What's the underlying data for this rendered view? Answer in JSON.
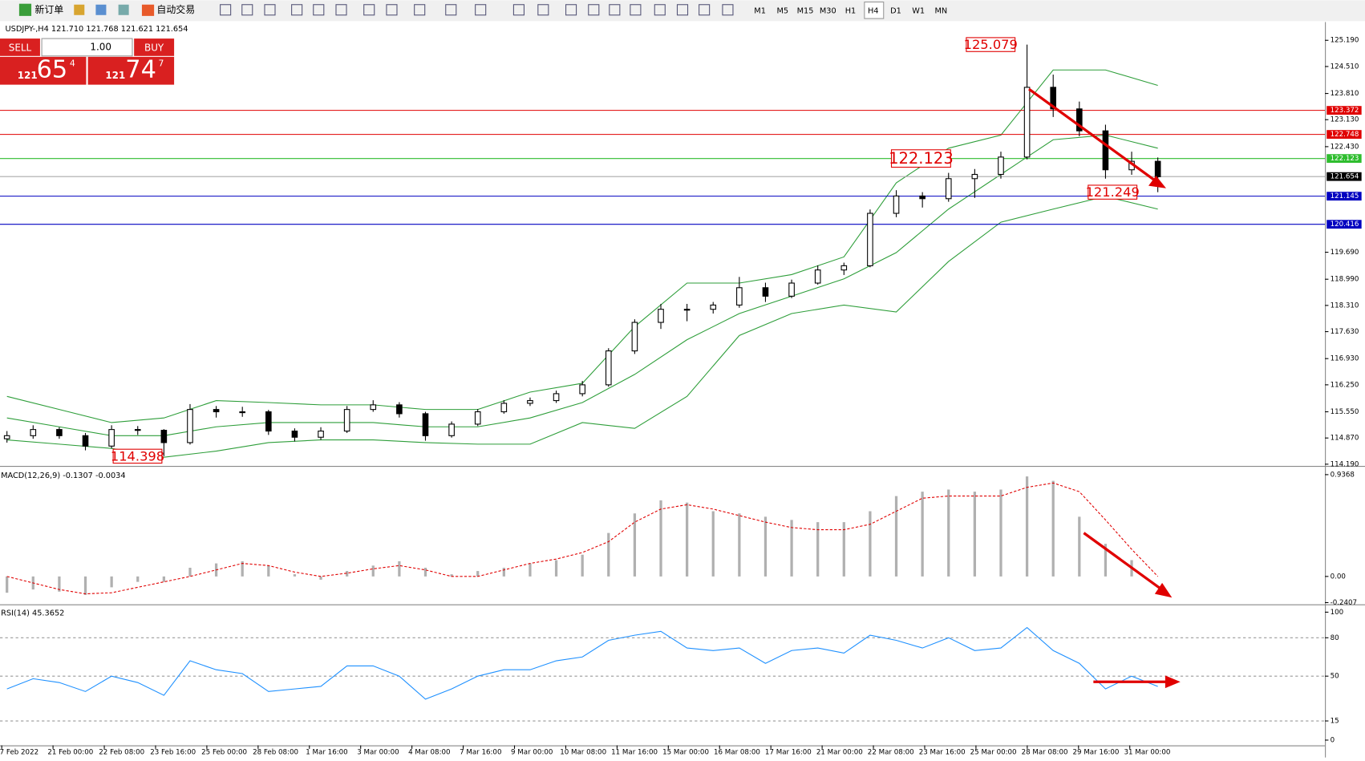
{
  "toolbar": {
    "new_order": "新订单",
    "auto_trade": "自动交易",
    "timeframes": [
      "M1",
      "M5",
      "M15",
      "M30",
      "H1",
      "H4",
      "D1",
      "W1",
      "MN"
    ],
    "active": "H4"
  },
  "trade_panel": {
    "sell": "SELL",
    "buy": "BUY",
    "lots": "1.00",
    "bid_big": "121",
    "bid_pips": "65",
    "bid_frac": "4",
    "ask_big": "121",
    "ask_pips": "74",
    "ask_frac": "7"
  },
  "time_axis": [
    "7 Feb 2022",
    "21 Feb 00:00",
    "22 Feb 08:00",
    "23 Feb 16:00",
    "25 Feb 00:00",
    "28 Feb 08:00",
    "1 Mar 16:00",
    "3 Mar 00:00",
    "4 Mar 08:00",
    "7 Mar 16:00",
    "9 Mar 00:00",
    "10 Mar 08:00",
    "11 Mar 16:00",
    "15 Mar 00:00",
    "16 Mar 08:00",
    "17 Mar 16:00",
    "21 Mar 00:00",
    "22 Mar 08:00",
    "23 Mar 16:00",
    "25 Mar 00:00",
    "28 Mar 08:00",
    "29 Mar 16:00",
    "31 Mar 00:00"
  ],
  "chart_data": [
    {
      "type": "candlestick",
      "title": "USDJPY-,H4 121.710 121.768 121.621 121.654",
      "ylim": [
        114.19,
        125.19
      ],
      "yticks": [
        {
          "value": 125.19,
          "label": "125.190"
        },
        {
          "value": 124.51,
          "label": "124.510"
        },
        {
          "value": 123.81,
          "label": "123.810"
        },
        {
          "value": 123.13,
          "label": "123.130"
        },
        {
          "value": 122.43,
          "label": "122.430"
        },
        {
          "value": 119.69,
          "label": "119.690"
        },
        {
          "value": 118.99,
          "label": "118.990"
        },
        {
          "value": 118.31,
          "label": "118.310"
        },
        {
          "value": 117.63,
          "label": "117.630"
        },
        {
          "value": 116.93,
          "label": "116.930"
        },
        {
          "value": 116.25,
          "label": "116.250"
        },
        {
          "value": 115.55,
          "label": "115.550"
        },
        {
          "value": 114.87,
          "label": "114.870"
        },
        {
          "value": 114.19,
          "label": "114.190"
        }
      ],
      "candles": [
        [
          114.85,
          115.05,
          114.75,
          114.93
        ],
        [
          114.93,
          115.2,
          114.85,
          115.09
        ],
        [
          115.09,
          115.15,
          114.85,
          114.93
        ],
        [
          114.93,
          115.0,
          114.55,
          114.66
        ],
        [
          114.66,
          115.2,
          114.6,
          115.09
        ],
        [
          115.09,
          115.18,
          114.95,
          115.07
        ],
        [
          115.07,
          115.1,
          114.398,
          114.75
        ],
        [
          114.75,
          115.75,
          114.7,
          115.61
        ],
        [
          115.61,
          115.7,
          115.4,
          115.55
        ],
        [
          115.55,
          115.68,
          115.42,
          115.55
        ],
        [
          115.55,
          115.6,
          114.95,
          115.05
        ],
        [
          115.05,
          115.12,
          114.78,
          114.89
        ],
        [
          114.89,
          115.15,
          114.82,
          115.05
        ],
        [
          115.05,
          115.7,
          115.0,
          115.61
        ],
        [
          115.61,
          115.85,
          115.55,
          115.73
        ],
        [
          115.73,
          115.8,
          115.4,
          115.5
        ],
        [
          115.5,
          115.55,
          114.8,
          114.93
        ],
        [
          114.93,
          115.3,
          114.88,
          115.23
        ],
        [
          115.23,
          115.62,
          115.18,
          115.55
        ],
        [
          115.55,
          115.85,
          115.5,
          115.77
        ],
        [
          115.77,
          115.92,
          115.7,
          115.84
        ],
        [
          115.84,
          116.1,
          115.78,
          116.02
        ],
        [
          116.02,
          116.35,
          115.95,
          116.25
        ],
        [
          116.25,
          117.2,
          116.2,
          117.13
        ],
        [
          117.13,
          117.95,
          117.05,
          117.87
        ],
        [
          117.87,
          118.35,
          117.7,
          118.21
        ],
        [
          118.21,
          118.35,
          117.9,
          118.21
        ],
        [
          118.21,
          118.4,
          118.1,
          118.32
        ],
        [
          118.32,
          119.05,
          118.25,
          118.77
        ],
        [
          118.77,
          118.9,
          118.4,
          118.55
        ],
        [
          118.55,
          118.98,
          118.5,
          118.89
        ],
        [
          118.89,
          119.35,
          118.85,
          119.23
        ],
        [
          119.23,
          119.42,
          119.1,
          119.34
        ],
        [
          119.34,
          120.8,
          119.3,
          120.7
        ],
        [
          120.7,
          121.3,
          120.6,
          121.15
        ],
        [
          121.15,
          121.25,
          120.85,
          121.08
        ],
        [
          121.08,
          121.75,
          121.0,
          121.6
        ],
        [
          121.6,
          121.85,
          121.1,
          121.71
        ],
        [
          121.71,
          122.3,
          121.6,
          122.16
        ],
        [
          122.16,
          125.079,
          122.1,
          123.97
        ],
        [
          123.97,
          124.3,
          123.2,
          123.41
        ],
        [
          123.41,
          123.6,
          122.7,
          122.84
        ],
        [
          122.84,
          123.0,
          121.6,
          121.83
        ],
        [
          121.83,
          122.3,
          121.7,
          122.05
        ],
        [
          122.05,
          122.15,
          121.249,
          121.65
        ]
      ],
      "bollinger": {
        "color": "#2e9e3a",
        "upper": [
          115.95,
          115.61,
          115.27,
          115.39,
          115.84,
          115.79,
          115.73,
          115.73,
          115.61,
          115.61,
          116.06,
          116.29,
          117.76,
          118.89,
          118.89,
          119.11,
          119.57,
          121.49,
          122.39,
          122.73,
          124.42,
          124.42,
          124.02
        ],
        "middle": [
          115.39,
          115.16,
          114.93,
          114.93,
          115.16,
          115.27,
          115.27,
          115.27,
          115.16,
          115.16,
          115.39,
          115.79,
          116.52,
          117.42,
          118.1,
          118.55,
          119.0,
          119.68,
          120.81,
          121.71,
          122.61,
          122.73,
          122.39
        ],
        "lower": [
          114.82,
          114.71,
          114.6,
          114.37,
          114.53,
          114.75,
          114.82,
          114.82,
          114.75,
          114.71,
          114.71,
          115.27,
          115.12,
          115.95,
          117.53,
          118.1,
          118.32,
          118.14,
          119.45,
          120.47,
          120.81,
          121.14,
          120.81
        ]
      },
      "levels": [
        {
          "value": 123.372,
          "color": "#e00000"
        },
        {
          "value": 122.748,
          "color": "#e00000"
        },
        {
          "value": 122.123,
          "color": "#2ebd2e"
        },
        {
          "value": 121.654,
          "color": "#000000"
        },
        {
          "value": 121.145,
          "color": "#0000c0"
        },
        {
          "value": 120.416,
          "color": "#0000c0"
        }
      ],
      "annotations": [
        125.079,
        114.398,
        121.249,
        122.123
      ]
    },
    {
      "type": "macd",
      "title": "MACD(12,26,9) -0.1307 -0.0034",
      "ylim": [
        -0.2407,
        0.9368
      ],
      "yticks": [
        0.9368,
        {
          "value": 0,
          "label": "0.00"
        },
        -0.2407
      ],
      "histogram": {
        "color": "#b0b0b0",
        "values": [
          -0.15,
          -0.12,
          -0.14,
          -0.17,
          -0.1,
          -0.05,
          -0.05,
          0.08,
          0.12,
          0.14,
          0.1,
          0.02,
          -0.03,
          0.05,
          0.1,
          0.14,
          0.08,
          0.02,
          0.05,
          0.08,
          0.12,
          0.15,
          0.2,
          0.4,
          0.58,
          0.7,
          0.68,
          0.6,
          0.58,
          0.55,
          0.52,
          0.5,
          0.5,
          0.6,
          0.74,
          0.78,
          0.8,
          0.78,
          0.8,
          0.92,
          0.88,
          0.55,
          0.3,
          0.15,
          0.0
        ]
      },
      "signal": {
        "color": "#e00000",
        "values": [
          0.0,
          -0.06,
          -0.12,
          -0.16,
          -0.15,
          -0.1,
          -0.05,
          0.0,
          0.06,
          0.12,
          0.1,
          0.04,
          0.0,
          0.03,
          0.07,
          0.1,
          0.06,
          0.0,
          0.0,
          0.06,
          0.12,
          0.16,
          0.22,
          0.32,
          0.5,
          0.62,
          0.66,
          0.62,
          0.56,
          0.5,
          0.45,
          0.43,
          0.43,
          0.48,
          0.6,
          0.72,
          0.74,
          0.74,
          0.74,
          0.82,
          0.86,
          0.78,
          0.52,
          0.25,
          0.0
        ]
      }
    },
    {
      "type": "rsi",
      "title": "RSI(14) 45.3652",
      "ylim": [
        0,
        100
      ],
      "yticks": [
        100,
        80,
        50,
        15,
        0
      ],
      "levels": [
        80,
        50,
        15
      ],
      "color": "#1e90ff",
      "values": [
        40,
        48,
        45,
        38,
        50,
        45,
        35,
        62,
        55,
        52,
        38,
        40,
        42,
        58,
        58,
        50,
        32,
        40,
        50,
        55,
        55,
        62,
        65,
        78,
        82,
        85,
        72,
        70,
        72,
        60,
        70,
        72,
        68,
        82,
        78,
        72,
        80,
        70,
        72,
        88,
        70,
        60,
        40,
        50,
        42
      ]
    }
  ]
}
